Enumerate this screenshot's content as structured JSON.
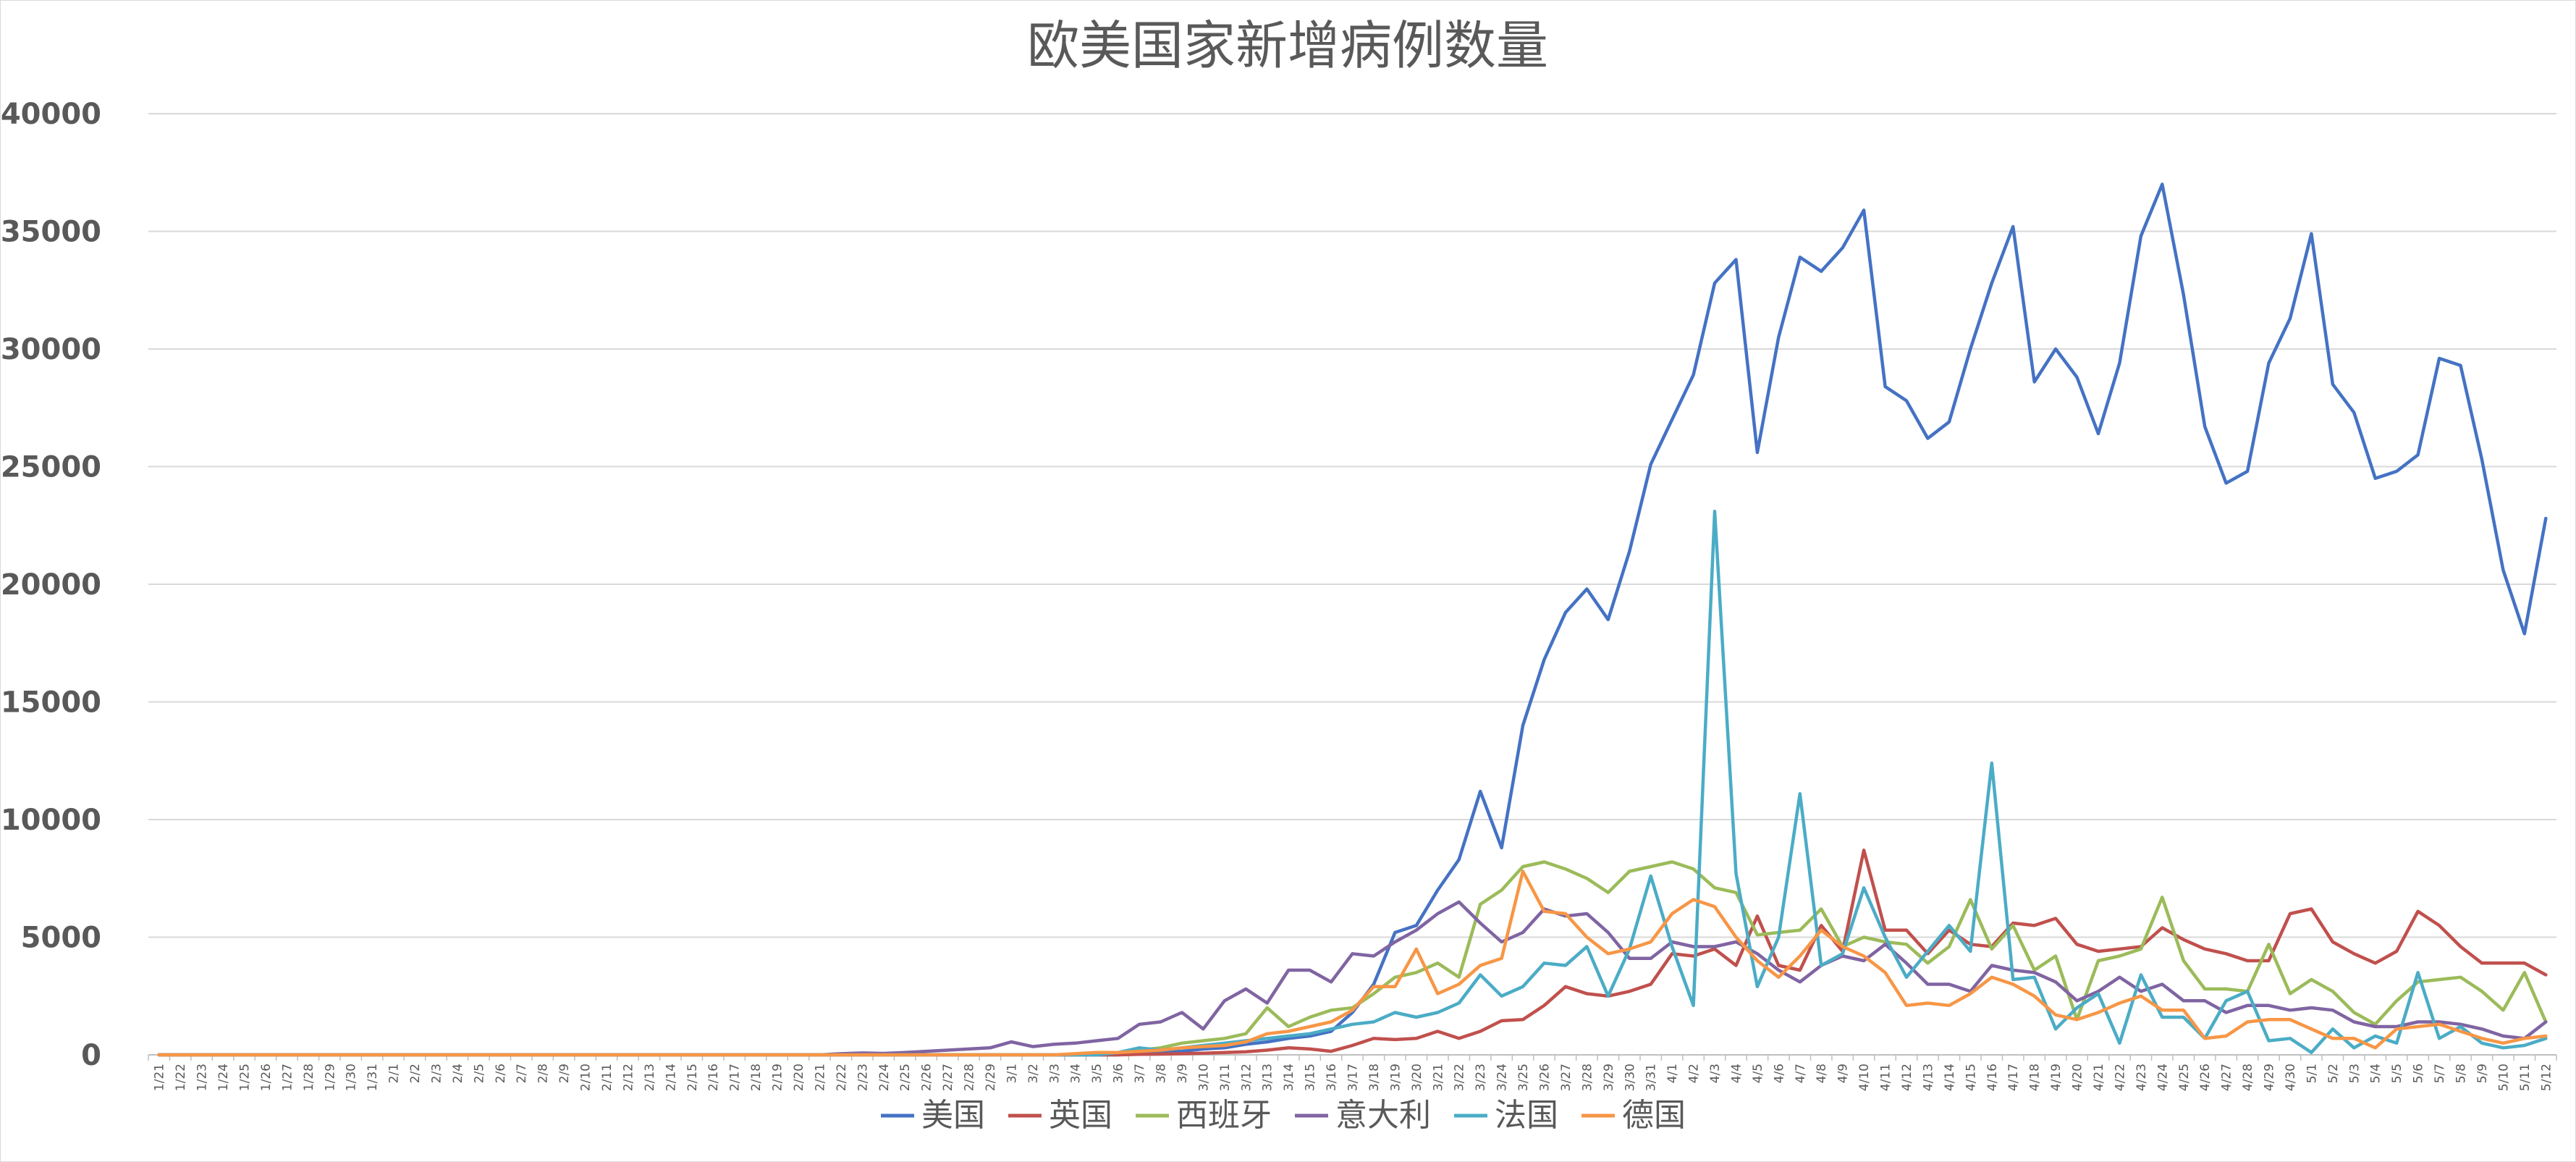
{
  "chart_data": {
    "type": "line",
    "title": "欧美国家新增病例数量",
    "xlabel": "",
    "ylabel": "",
    "ylim": [
      0,
      40000
    ],
    "yticks": [
      0,
      5000,
      10000,
      15000,
      20000,
      25000,
      30000,
      35000,
      40000
    ],
    "grid": "horizontal",
    "legend_position": "bottom",
    "categories": [
      "1/21",
      "1/22",
      "1/23",
      "1/24",
      "1/25",
      "1/26",
      "1/27",
      "1/28",
      "1/29",
      "1/30",
      "1/31",
      "2/1",
      "2/2",
      "2/3",
      "2/4",
      "2/5",
      "2/6",
      "2/7",
      "2/8",
      "2/9",
      "2/10",
      "2/11",
      "2/12",
      "2/13",
      "2/14",
      "2/15",
      "2/16",
      "2/17",
      "2/18",
      "2/19",
      "2/20",
      "2/21",
      "2/22",
      "2/23",
      "2/24",
      "2/25",
      "2/26",
      "2/27",
      "2/28",
      "2/29",
      "3/1",
      "3/2",
      "3/3",
      "3/4",
      "3/5",
      "3/6",
      "3/7",
      "3/8",
      "3/9",
      "3/10",
      "3/11",
      "3/12",
      "3/13",
      "3/14",
      "3/15",
      "3/16",
      "3/17",
      "3/18",
      "3/19",
      "3/20",
      "3/21",
      "3/22",
      "3/23",
      "3/24",
      "3/25",
      "3/26",
      "3/27",
      "3/28",
      "3/29",
      "3/30",
      "3/31",
      "4/1",
      "4/2",
      "4/3",
      "4/4",
      "4/5",
      "4/6",
      "4/7",
      "4/8",
      "4/9",
      "4/10",
      "4/11",
      "4/12",
      "4/13",
      "4/14",
      "4/15",
      "4/16",
      "4/17",
      "4/18",
      "4/19",
      "4/20",
      "4/21",
      "4/22",
      "4/23",
      "4/24",
      "4/25",
      "4/26",
      "4/27",
      "4/28",
      "4/29",
      "4/30",
      "5/1",
      "5/2",
      "5/3",
      "5/4",
      "5/5",
      "5/6",
      "5/7",
      "5/8",
      "5/9",
      "5/10",
      "5/11",
      "5/12"
    ],
    "series": [
      {
        "name": "美国",
        "color": "#4472c4",
        "values": [
          0,
          0,
          0,
          0,
          0,
          0,
          0,
          0,
          0,
          0,
          0,
          0,
          0,
          0,
          0,
          0,
          0,
          0,
          0,
          0,
          0,
          0,
          0,
          0,
          0,
          0,
          0,
          0,
          0,
          0,
          0,
          0,
          0,
          0,
          0,
          0,
          0,
          0,
          0,
          0,
          0,
          0,
          0,
          0,
          0,
          0,
          100,
          120,
          150,
          250,
          300,
          450,
          550,
          700,
          800,
          1000,
          1800,
          3000,
          5200,
          5500,
          7000,
          8300,
          11200,
          8800,
          14000,
          16800,
          18800,
          19800,
          18500,
          21400,
          25100,
          27000,
          28900,
          32800,
          33800,
          25600,
          30500,
          33900,
          33300,
          34300,
          35900,
          28400,
          27800,
          26200,
          26900,
          30000,
          32800,
          35200,
          28600,
          30000,
          28800,
          26400,
          29400,
          34800,
          37000,
          32300,
          26700,
          24300,
          24800,
          29400,
          31300,
          34900,
          28500,
          27300,
          24500,
          24800,
          25500,
          29600,
          29300,
          25300,
          20600,
          17900,
          22800
        ]
      },
      {
        "name": "英国",
        "color": "#c0504d",
        "values": [
          0,
          0,
          0,
          0,
          0,
          0,
          0,
          0,
          0,
          0,
          0,
          0,
          0,
          0,
          0,
          0,
          0,
          0,
          0,
          0,
          0,
          0,
          0,
          0,
          0,
          0,
          0,
          0,
          0,
          0,
          0,
          0,
          0,
          0,
          0,
          0,
          0,
          0,
          0,
          0,
          0,
          0,
          0,
          0,
          0,
          0,
          20,
          30,
          50,
          70,
          100,
          130,
          200,
          300,
          250,
          150,
          400,
          700,
          650,
          700,
          1000,
          700,
          1000,
          1450,
          1500,
          2100,
          2900,
          2600,
          2500,
          2700,
          3000,
          4300,
          4200,
          4500,
          3800,
          5900,
          3800,
          3600,
          5500,
          4400,
          8700,
          5300,
          5300,
          4300,
          5300,
          4700,
          4600,
          5600,
          5500,
          5800,
          4700,
          4400,
          4500,
          4600,
          5400,
          4900,
          4500,
          4300,
          4000,
          4000,
          6000,
          6200,
          4800,
          4300,
          3900,
          4400,
          6100,
          5500,
          4600,
          3900,
          3900,
          3900,
          3400
        ]
      },
      {
        "name": "西班牙",
        "color": "#9bbb59",
        "values": [
          0,
          0,
          0,
          0,
          0,
          0,
          0,
          0,
          0,
          0,
          0,
          0,
          0,
          0,
          0,
          0,
          0,
          0,
          0,
          0,
          0,
          0,
          0,
          0,
          0,
          0,
          0,
          0,
          0,
          0,
          0,
          0,
          0,
          0,
          0,
          0,
          0,
          0,
          0,
          0,
          0,
          0,
          0,
          20,
          50,
          100,
          200,
          300,
          500,
          600,
          700,
          900,
          2000,
          1200,
          1600,
          1900,
          2000,
          2600,
          3300,
          3500,
          3900,
          3300,
          6400,
          7000,
          8000,
          8200,
          7900,
          7500,
          6900,
          7800,
          8000,
          8200,
          7900,
          7100,
          6900,
          5100,
          5200,
          5300,
          6200,
          4600,
          5000,
          4800,
          4700,
          3900,
          4600,
          6600,
          4500,
          5500,
          3600,
          4200,
          1500,
          4000,
          4200,
          4500,
          6700,
          4000,
          2800,
          2800,
          2700,
          4700,
          2600,
          3200,
          2700,
          1800,
          1300,
          2300,
          3100,
          3200,
          3300,
          2700,
          1900,
          3500,
          1400
        ]
      },
      {
        "name": "意大利",
        "color": "#8064a2",
        "values": [
          0,
          0,
          0,
          0,
          0,
          0,
          0,
          0,
          0,
          0,
          0,
          0,
          0,
          0,
          0,
          0,
          0,
          0,
          0,
          0,
          0,
          0,
          0,
          0,
          0,
          0,
          0,
          0,
          0,
          0,
          0,
          0,
          50,
          80,
          60,
          100,
          150,
          200,
          250,
          300,
          550,
          350,
          450,
          500,
          600,
          700,
          1300,
          1400,
          1800,
          1100,
          2300,
          2800,
          2200,
          3600,
          3600,
          3100,
          4300,
          4200,
          4800,
          5300,
          6000,
          6500,
          5600,
          4800,
          5200,
          6200,
          5900,
          6000,
          5200,
          4100,
          4100,
          4800,
          4600,
          4600,
          4800,
          4300,
          3600,
          3100,
          3800,
          4200,
          4000,
          4700,
          3900,
          3000,
          3000,
          2700,
          3800,
          3600,
          3500,
          3100,
          2300,
          2700,
          3300,
          2700,
          3000,
          2300,
          2300,
          1800,
          2100,
          2100,
          1900,
          2000,
          1900,
          1400,
          1200,
          1200,
          1400,
          1400,
          1300,
          1100,
          800,
          700,
          1400
        ]
      },
      {
        "name": "法国",
        "color": "#4bacc6",
        "values": [
          0,
          0,
          0,
          0,
          0,
          0,
          0,
          0,
          0,
          0,
          0,
          0,
          0,
          0,
          0,
          0,
          0,
          0,
          0,
          0,
          0,
          0,
          0,
          0,
          0,
          0,
          0,
          0,
          0,
          0,
          0,
          0,
          0,
          0,
          0,
          0,
          0,
          0,
          0,
          0,
          0,
          0,
          0,
          0,
          0,
          100,
          300,
          200,
          300,
          400,
          500,
          600,
          700,
          800,
          900,
          1100,
          1300,
          1400,
          1800,
          1600,
          1800,
          2200,
          3400,
          2500,
          2900,
          3900,
          3800,
          4600,
          2500,
          4500,
          7600,
          4600,
          2100,
          23100,
          7700,
          2900,
          5000,
          11100,
          3800,
          4300,
          7100,
          5000,
          3300,
          4400,
          5500,
          4400,
          12400,
          3200,
          3300,
          1100,
          2000,
          2600,
          500,
          3400,
          1600,
          1600,
          700,
          2300,
          2700,
          600,
          700,
          100,
          1100,
          300,
          800,
          500,
          3500,
          700,
          1200,
          500,
          300,
          400,
          700
        ]
      },
      {
        "name": "德国",
        "color": "#f79646",
        "values": [
          0,
          0,
          0,
          0,
          0,
          0,
          0,
          0,
          0,
          0,
          0,
          0,
          0,
          0,
          0,
          0,
          0,
          0,
          0,
          0,
          0,
          0,
          0,
          0,
          0,
          0,
          0,
          0,
          0,
          0,
          0,
          0,
          0,
          0,
          0,
          0,
          0,
          0,
          0,
          0,
          0,
          0,
          0,
          50,
          100,
          100,
          150,
          200,
          300,
          350,
          400,
          550,
          900,
          1000,
          1200,
          1400,
          1900,
          2900,
          2900,
          4500,
          2600,
          3000,
          3800,
          4100,
          7800,
          6100,
          6000,
          5000,
          4300,
          4500,
          4800,
          6000,
          6600,
          6300,
          5000,
          4000,
          3300,
          4200,
          5300,
          4600,
          4200,
          3500,
          2100,
          2200,
          2100,
          2600,
          3300,
          3000,
          2500,
          1700,
          1500,
          1800,
          2200,
          2500,
          1900,
          1900,
          700,
          800,
          1400,
          1500,
          1500,
          1100,
          700,
          700,
          300,
          1100,
          1200,
          1300,
          1000,
          700,
          500,
          700,
          800
        ]
      }
    ]
  }
}
